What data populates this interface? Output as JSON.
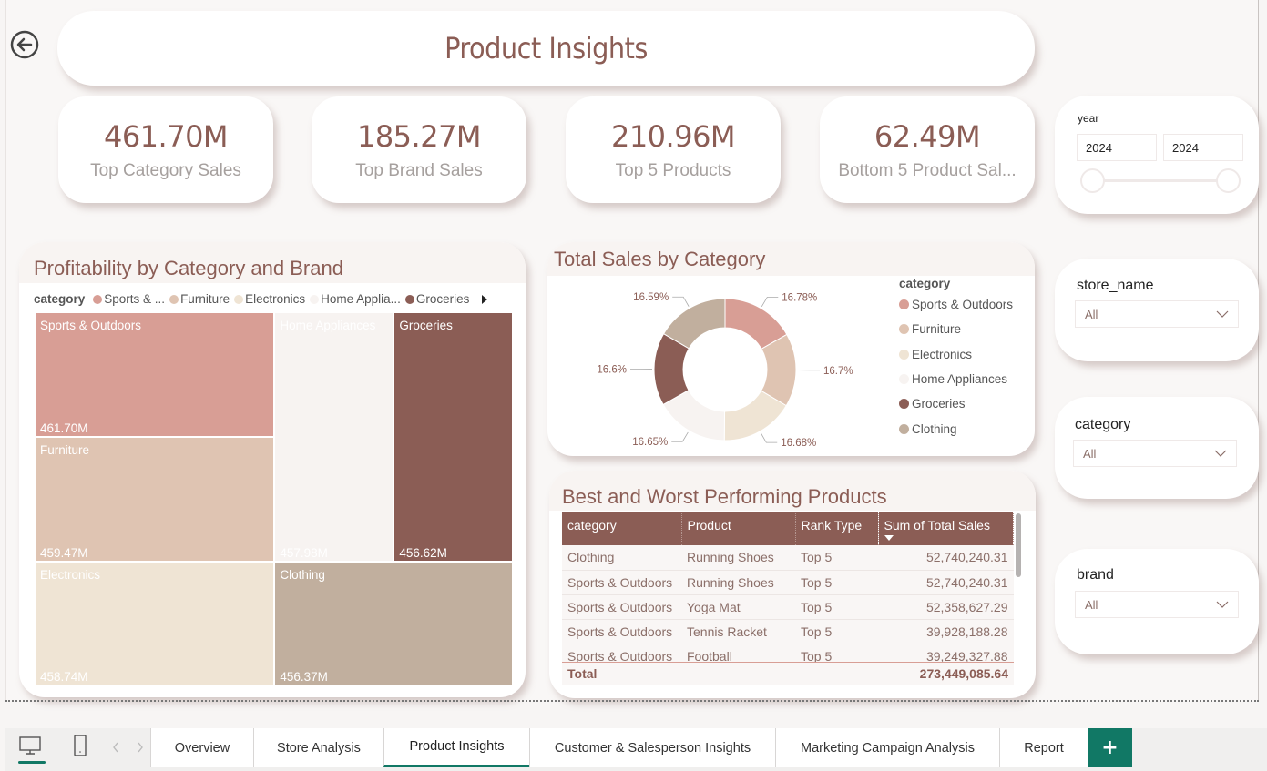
{
  "header": {
    "title": "Product Insights",
    "back_icon": "back-arrow-circle-icon"
  },
  "kpis": [
    {
      "value": "461.70M",
      "label": "Top Category Sales"
    },
    {
      "value": "185.27M",
      "label": "Top Brand Sales"
    },
    {
      "value": "210.96M",
      "label": "Top 5 Products"
    },
    {
      "value": "62.49M",
      "label": "Bottom 5 Product Sal..."
    }
  ],
  "slicers": {
    "year": {
      "label": "year",
      "from": "2024",
      "to": "2024",
      "range_fraction": [
        0,
        1
      ]
    },
    "store_name": {
      "label": "store_name",
      "value": "All"
    },
    "category": {
      "label": "category",
      "value": "All"
    },
    "brand": {
      "label": "brand",
      "value": "All"
    }
  },
  "colors": {
    "sports": "#d89e95",
    "furniture": "#dfc4b2",
    "electronics": "#efe4d4",
    "home": "#f7f3f1",
    "groceries": "#8b5d55",
    "clothing": "#c1af9e",
    "accent": "#8b5d55",
    "tab_accent": "#117865"
  },
  "chart_data": [
    {
      "type": "treemap",
      "title": "Profitability by Category and Brand",
      "legend_title": "category",
      "legend_items": [
        "Sports & ...",
        "Furniture",
        "Electronics",
        "Home Applia...",
        "Groceries"
      ],
      "categories": [
        "Sports & Outdoors",
        "Furniture",
        "Home Appliances",
        "Groceries",
        "Electronics",
        "Clothing"
      ],
      "values": [
        461.7,
        459.47,
        457.98,
        456.62,
        458.74,
        456.37
      ],
      "value_labels": [
        "461.70M",
        "459.47M",
        "457.98M",
        "456.62M",
        "458.74M",
        "456.37M"
      ],
      "unit": "M"
    },
    {
      "type": "pie",
      "variant": "donut",
      "title": "Total Sales by Category",
      "legend_title": "category",
      "legend_position": "right",
      "categories": [
        "Sports & Outdoors",
        "Furniture",
        "Electronics",
        "Home Appliances",
        "Groceries",
        "Clothing"
      ],
      "values": [
        16.78,
        16.7,
        16.68,
        16.65,
        16.6,
        16.59
      ],
      "value_labels": [
        "16.78%",
        "16.7%",
        "16.68%",
        "16.65%",
        "16.6%",
        "16.59%"
      ]
    }
  ],
  "table": {
    "title": "Best and Worst Performing Products",
    "columns": [
      "category",
      "Product",
      "Rank Type",
      "Sum of Total Sales"
    ],
    "sort_column": "Sum of Total Sales",
    "sort_direction": "descending",
    "rows": [
      [
        "Clothing",
        "Running Shoes",
        "Top 5",
        "52,740,240.31"
      ],
      [
        "Sports & Outdoors",
        "Running Shoes",
        "Top 5",
        "52,740,240.31"
      ],
      [
        "Sports & Outdoors",
        "Yoga Mat",
        "Top 5",
        "52,358,627.29"
      ],
      [
        "Sports & Outdoors",
        "Tennis Racket",
        "Top 5",
        "39,928,188.28"
      ],
      [
        "Sports & Outdoors",
        "Football",
        "Top 5",
        "39,249,327.88"
      ]
    ],
    "total_label": "Total",
    "total_value": "273,449,085.64"
  },
  "tabs": {
    "items": [
      "Overview",
      "Store Analysis",
      "Product Insights",
      "Customer & Salesperson Insights",
      "Marketing Campaign Analysis",
      "Report"
    ],
    "active": "Product Insights",
    "add_label": "+"
  }
}
